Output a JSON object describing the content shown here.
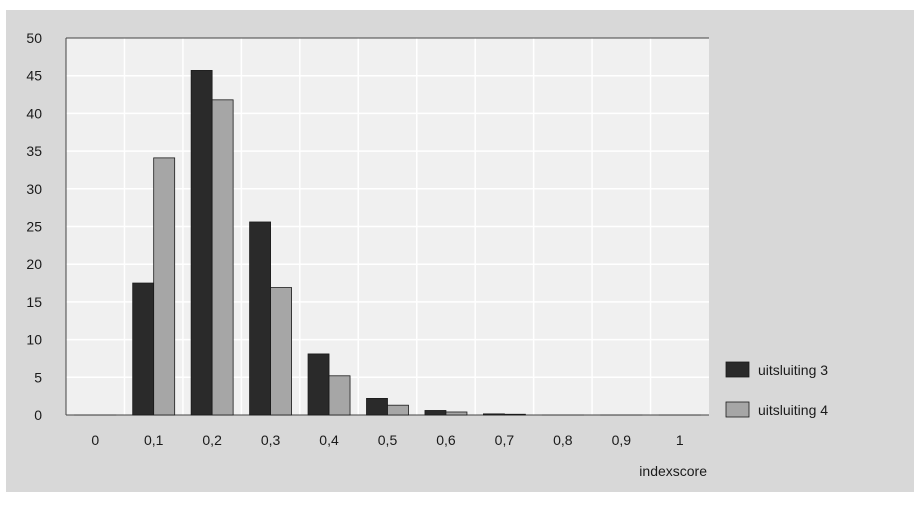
{
  "chart_data": {
    "type": "bar",
    "categories": [
      "0",
      "0,1",
      "0,2",
      "0,3",
      "0,4",
      "0,5",
      "0,6",
      "0,7",
      "0,8",
      "0,9",
      "1"
    ],
    "series": [
      {
        "name": "uitsluiting 3",
        "color": "#2a2a2a",
        "values": [
          0,
          17.5,
          45.7,
          25.6,
          8.1,
          2.2,
          0.6,
          0.15,
          0,
          0,
          0
        ]
      },
      {
        "name": "uitsluiting 4",
        "color": "#a6a6a6",
        "values": [
          0,
          34.1,
          41.8,
          16.9,
          5.2,
          1.3,
          0.4,
          0.1,
          0,
          0,
          0
        ]
      }
    ],
    "xlabel": "indexscore",
    "ylabel": "",
    "ylim": [
      0,
      50
    ],
    "yticks": [
      0,
      5,
      10,
      15,
      20,
      25,
      30,
      35,
      40,
      45,
      50
    ],
    "grid": true,
    "legend": "right"
  }
}
